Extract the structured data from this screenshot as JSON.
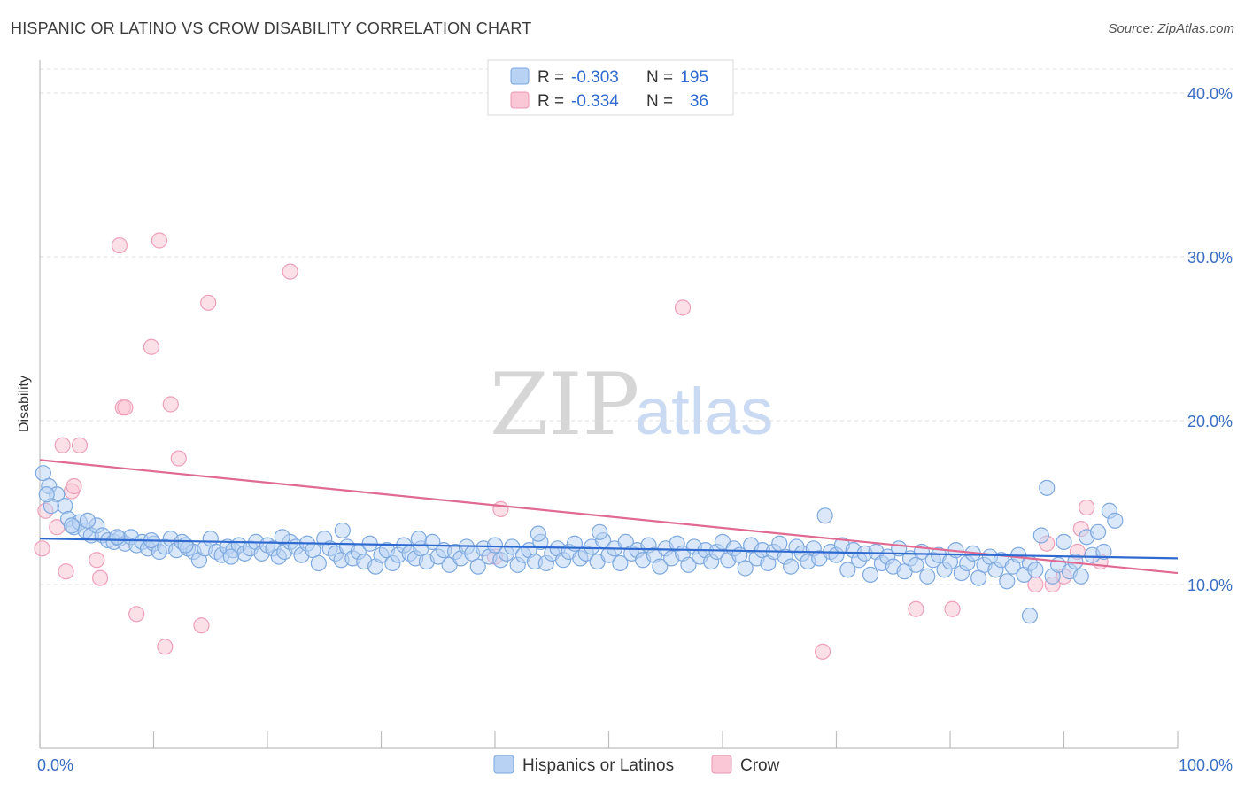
{
  "title": "HISPANIC OR LATINO VS CROW DISABILITY CORRELATION CHART",
  "source": "Source: ZipAtlas.com",
  "watermark": {
    "zip": "ZIP",
    "atlas": "atlas"
  },
  "legend": {
    "rows": [
      {
        "r_label": "R =",
        "r_value": "-0.303",
        "n_label": "N =",
        "n_value": "195"
      },
      {
        "r_label": "R =",
        "r_value": "-0.334",
        "n_label": "N =",
        "n_value": "36"
      }
    ]
  },
  "chart_data": {
    "type": "scatter",
    "title": "HISPANIC OR LATINO VS CROW DISABILITY CORRELATION CHART",
    "xlabel": "",
    "ylabel": "Disability",
    "xlim": [
      0,
      100
    ],
    "ylim": [
      0,
      42
    ],
    "x_tick_labels": [
      "0.0%",
      "100.0%"
    ],
    "y_ticks": [
      10,
      20,
      30,
      40
    ],
    "y_tick_labels": [
      "10.0%",
      "20.0%",
      "30.0%",
      "40.0%"
    ],
    "grid": true,
    "legend_position": "bottom-center",
    "series": [
      {
        "name": "Hispanics or Latinos",
        "color": "#8ab4e8",
        "line_color": "#2f6ad0",
        "r": -0.303,
        "n": 195,
        "trend": {
          "x": [
            0,
            100
          ],
          "y": [
            12.8,
            11.6
          ]
        },
        "points": [
          [
            0.3,
            16.8
          ],
          [
            0.8,
            16.0
          ],
          [
            1.5,
            15.5
          ],
          [
            2.2,
            14.8
          ],
          [
            2.5,
            14.0
          ],
          [
            3.0,
            13.5
          ],
          [
            3.5,
            13.8
          ],
          [
            4.0,
            13.3
          ],
          [
            4.5,
            13.0
          ],
          [
            5.0,
            13.6
          ],
          [
            5.5,
            13.0
          ],
          [
            6.0,
            12.7
          ],
          [
            6.5,
            12.6
          ],
          [
            7.0,
            12.8
          ],
          [
            7.5,
            12.5
          ],
          [
            8.0,
            12.9
          ],
          [
            8.5,
            12.4
          ],
          [
            9.0,
            12.6
          ],
          [
            9.5,
            12.2
          ],
          [
            10.0,
            12.5
          ],
          [
            10.5,
            12.0
          ],
          [
            11.0,
            12.3
          ],
          [
            11.5,
            12.8
          ],
          [
            12.0,
            12.1
          ],
          [
            12.5,
            12.6
          ],
          [
            13.0,
            12.2
          ],
          [
            13.5,
            12.0
          ],
          [
            14.0,
            11.5
          ],
          [
            14.5,
            12.2
          ],
          [
            15.0,
            12.8
          ],
          [
            15.5,
            12.0
          ],
          [
            16.0,
            11.8
          ],
          [
            16.5,
            12.3
          ],
          [
            17.0,
            12.1
          ],
          [
            17.5,
            12.4
          ],
          [
            18.0,
            11.9
          ],
          [
            18.5,
            12.2
          ],
          [
            19.0,
            12.6
          ],
          [
            19.5,
            11.9
          ],
          [
            20.0,
            12.4
          ],
          [
            20.5,
            12.2
          ],
          [
            21.0,
            11.7
          ],
          [
            21.5,
            12.0
          ],
          [
            22.0,
            12.6
          ],
          [
            22.5,
            12.3
          ],
          [
            23.0,
            11.8
          ],
          [
            23.5,
            12.5
          ],
          [
            24.0,
            12.1
          ],
          [
            24.5,
            11.3
          ],
          [
            25.0,
            12.8
          ],
          [
            25.5,
            12.2
          ],
          [
            26.0,
            11.9
          ],
          [
            26.5,
            11.5
          ],
          [
            27.0,
            12.3
          ],
          [
            27.5,
            11.6
          ],
          [
            28.0,
            12.0
          ],
          [
            28.5,
            11.4
          ],
          [
            29.0,
            12.5
          ],
          [
            29.5,
            11.1
          ],
          [
            30.0,
            11.8
          ],
          [
            30.5,
            12.1
          ],
          [
            31.0,
            11.3
          ],
          [
            31.5,
            11.8
          ],
          [
            32.0,
            12.4
          ],
          [
            32.5,
            11.9
          ],
          [
            33.0,
            11.6
          ],
          [
            33.5,
            12.2
          ],
          [
            34.0,
            11.4
          ],
          [
            34.5,
            12.6
          ],
          [
            35.0,
            11.7
          ],
          [
            35.5,
            12.1
          ],
          [
            36.0,
            11.2
          ],
          [
            36.5,
            12.0
          ],
          [
            37.0,
            11.6
          ],
          [
            37.5,
            12.3
          ],
          [
            38.0,
            11.9
          ],
          [
            38.5,
            11.1
          ],
          [
            39.0,
            12.2
          ],
          [
            39.5,
            11.7
          ],
          [
            40.0,
            12.4
          ],
          [
            40.5,
            11.5
          ],
          [
            41.0,
            11.9
          ],
          [
            41.5,
            12.3
          ],
          [
            42.0,
            11.2
          ],
          [
            42.5,
            11.8
          ],
          [
            43.0,
            12.1
          ],
          [
            43.5,
            11.4
          ],
          [
            44.0,
            12.6
          ],
          [
            44.5,
            11.3
          ],
          [
            45.0,
            11.9
          ],
          [
            45.5,
            12.2
          ],
          [
            46.0,
            11.5
          ],
          [
            46.5,
            12.0
          ],
          [
            47.0,
            12.5
          ],
          [
            47.5,
            11.6
          ],
          [
            48.0,
            11.9
          ],
          [
            48.5,
            12.3
          ],
          [
            49.0,
            11.4
          ],
          [
            49.5,
            12.7
          ],
          [
            50.0,
            11.8
          ],
          [
            50.5,
            12.2
          ],
          [
            51.0,
            11.3
          ],
          [
            51.5,
            12.6
          ],
          [
            52.0,
            11.9
          ],
          [
            52.5,
            12.1
          ],
          [
            53.0,
            11.5
          ],
          [
            53.5,
            12.4
          ],
          [
            54.0,
            11.8
          ],
          [
            54.5,
            11.1
          ],
          [
            55.0,
            12.2
          ],
          [
            55.5,
            11.6
          ],
          [
            56.0,
            12.5
          ],
          [
            56.5,
            11.9
          ],
          [
            57.0,
            11.2
          ],
          [
            57.5,
            12.3
          ],
          [
            58.0,
            11.7
          ],
          [
            58.5,
            12.1
          ],
          [
            59.0,
            11.4
          ],
          [
            59.5,
            12.0
          ],
          [
            60.0,
            12.6
          ],
          [
            60.5,
            11.5
          ],
          [
            61.0,
            12.2
          ],
          [
            61.5,
            11.8
          ],
          [
            62.0,
            11.0
          ],
          [
            62.5,
            12.4
          ],
          [
            63.0,
            11.6
          ],
          [
            63.5,
            12.1
          ],
          [
            64.0,
            11.3
          ],
          [
            64.5,
            12.0
          ],
          [
            65.0,
            12.5
          ],
          [
            65.5,
            11.7
          ],
          [
            66.0,
            11.1
          ],
          [
            66.5,
            12.3
          ],
          [
            67.0,
            11.9
          ],
          [
            67.5,
            11.4
          ],
          [
            68.0,
            12.2
          ],
          [
            68.5,
            11.6
          ],
          [
            69.0,
            14.2
          ],
          [
            69.5,
            12.0
          ],
          [
            70.0,
            11.8
          ],
          [
            70.5,
            12.4
          ],
          [
            71.0,
            10.9
          ],
          [
            71.5,
            12.1
          ],
          [
            72.0,
            11.5
          ],
          [
            72.5,
            11.9
          ],
          [
            73.0,
            10.6
          ],
          [
            73.5,
            12.0
          ],
          [
            74.0,
            11.3
          ],
          [
            74.5,
            11.7
          ],
          [
            75.0,
            11.1
          ],
          [
            75.5,
            12.2
          ],
          [
            76.0,
            10.8
          ],
          [
            76.5,
            11.6
          ],
          [
            77.0,
            11.2
          ],
          [
            77.5,
            12.0
          ],
          [
            78.0,
            10.5
          ],
          [
            78.5,
            11.5
          ],
          [
            79.0,
            11.8
          ],
          [
            79.5,
            10.9
          ],
          [
            80.0,
            11.4
          ],
          [
            80.5,
            12.1
          ],
          [
            81.0,
            10.7
          ],
          [
            81.5,
            11.3
          ],
          [
            82.0,
            11.9
          ],
          [
            82.5,
            10.4
          ],
          [
            83.0,
            11.2
          ],
          [
            83.5,
            11.7
          ],
          [
            84.0,
            10.9
          ],
          [
            84.5,
            11.5
          ],
          [
            85.0,
            10.2
          ],
          [
            85.5,
            11.1
          ],
          [
            86.0,
            11.8
          ],
          [
            86.5,
            10.6
          ],
          [
            87.0,
            11.3
          ],
          [
            87.5,
            10.9
          ],
          [
            88.0,
            13.0
          ],
          [
            88.5,
            15.9
          ],
          [
            89.0,
            10.5
          ],
          [
            89.5,
            11.2
          ],
          [
            90.0,
            12.6
          ],
          [
            90.5,
            10.8
          ],
          [
            91.0,
            11.4
          ],
          [
            91.5,
            10.5
          ],
          [
            92.0,
            12.9
          ],
          [
            92.5,
            11.8
          ],
          [
            93.0,
            13.2
          ],
          [
            93.5,
            12.0
          ],
          [
            94.0,
            14.5
          ],
          [
            94.5,
            13.9
          ],
          [
            87.0,
            8.1
          ],
          [
            1.0,
            14.8
          ],
          [
            2.8,
            13.6
          ],
          [
            0.6,
            15.5
          ],
          [
            4.2,
            13.9
          ],
          [
            6.8,
            12.9
          ],
          [
            9.8,
            12.7
          ],
          [
            12.8,
            12.4
          ],
          [
            16.8,
            11.7
          ],
          [
            21.3,
            12.9
          ],
          [
            26.6,
            13.3
          ],
          [
            33.3,
            12.8
          ],
          [
            43.8,
            13.1
          ],
          [
            49.2,
            13.2
          ]
        ]
      },
      {
        "name": "Crow",
        "color": "#f5b4c8",
        "line_color": "#e06a92",
        "r": -0.334,
        "n": 36,
        "trend": {
          "x": [
            0,
            100
          ],
          "y": [
            17.6,
            10.7
          ]
        },
        "points": [
          [
            0.2,
            12.2
          ],
          [
            0.5,
            14.5
          ],
          [
            1.5,
            13.5
          ],
          [
            2.0,
            18.5
          ],
          [
            2.3,
            10.8
          ],
          [
            2.8,
            15.7
          ],
          [
            3.0,
            16.0
          ],
          [
            3.5,
            18.5
          ],
          [
            5.0,
            11.5
          ],
          [
            5.3,
            10.4
          ],
          [
            7.0,
            30.7
          ],
          [
            7.3,
            20.8
          ],
          [
            7.5,
            20.8
          ],
          [
            8.5,
            8.2
          ],
          [
            9.8,
            24.5
          ],
          [
            10.5,
            31.0
          ],
          [
            11.0,
            6.2
          ],
          [
            11.5,
            21.0
          ],
          [
            12.2,
            17.7
          ],
          [
            14.2,
            7.5
          ],
          [
            14.8,
            27.2
          ],
          [
            22.0,
            29.1
          ],
          [
            40.0,
            11.7
          ],
          [
            40.5,
            14.6
          ],
          [
            56.5,
            26.9
          ],
          [
            68.8,
            5.9
          ],
          [
            77.0,
            8.5
          ],
          [
            80.2,
            8.5
          ],
          [
            87.5,
            10.0
          ],
          [
            88.5,
            12.5
          ],
          [
            89.0,
            10.0
          ],
          [
            90.0,
            10.5
          ],
          [
            91.5,
            13.4
          ],
          [
            92.0,
            14.7
          ],
          [
            91.2,
            12.0
          ],
          [
            93.2,
            11.4
          ]
        ]
      }
    ]
  },
  "bottom_legend": [
    "Hispanics or Latinos",
    "Crow"
  ]
}
